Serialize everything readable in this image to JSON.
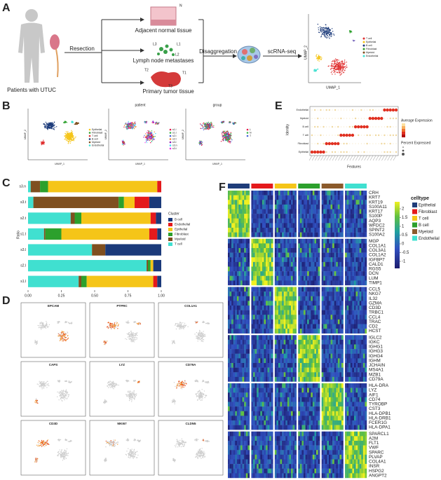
{
  "panel_labels": [
    "A",
    "B",
    "C",
    "D",
    "E",
    "F"
  ],
  "panel_a": {
    "patient_label": "Patients with UTUC",
    "resection": "Resection",
    "tissues": [
      "Adjacent normal tissue",
      "Lymph node metastases",
      "Primary tumor tissue"
    ],
    "normal_code": "N",
    "lymph_codes": [
      "L1",
      "L2",
      "L3"
    ],
    "tumor_codes": [
      "T1",
      "T2",
      "T3"
    ],
    "disaggregation": "Disaggregation",
    "scrna": "scRNA-seq",
    "umap_x": "UMAP_1",
    "umap_y": "UMAP_2",
    "legend": [
      "T cell",
      "Epithelial",
      "B cell",
      "Fibroblast",
      "Myeloid",
      "Endothelial"
    ]
  },
  "panel_b": {
    "titles": [
      "patient",
      "group"
    ],
    "umap_x": "UMAP_1",
    "umap_y": "UMAP_2",
    "celltype_legend": [
      "Epithelial",
      "Fibroblast",
      "T cell",
      "B cell",
      "Myeloid",
      "Endothelial"
    ],
    "patient_legend": [
      "s1.l",
      "s1.t",
      "s2.l",
      "s2.t",
      "s3.l",
      "s3.n",
      "s3.t"
    ],
    "group_legend": [
      "L",
      "N",
      "T"
    ]
  },
  "chart_data": {
    "type": "bar",
    "orientation": "horizontal",
    "stacked": true,
    "y_label": "Ratio",
    "legend_title": "Cluster",
    "categories": [
      "s3.n",
      "s3.t",
      "s2.t",
      "s1.t",
      "s3.l",
      "s2.l",
      "s1.l"
    ],
    "series": [
      {
        "name": "B cell",
        "color": "#1b3a7a",
        "values": [
          0,
          0.09,
          0.04,
          0.03,
          0.42,
          0.06,
          0.03
        ]
      },
      {
        "name": "Endothelial",
        "color": "#e41a1c",
        "values": [
          0.03,
          0.11,
          0.04,
          0.06,
          0,
          0,
          0.03
        ]
      },
      {
        "name": "Epithelial",
        "color": "#f5c518",
        "values": [
          0.82,
          0.08,
          0.52,
          0.66,
          0,
          0.02,
          0.5
        ]
      },
      {
        "name": "Fibroblast",
        "color": "#2ca02c",
        "values": [
          0.06,
          0.04,
          0.05,
          0.12,
          0,
          0.02,
          0.04
        ]
      },
      {
        "name": "Myeloid",
        "color": "#7f4f1f",
        "values": [
          0.07,
          0.64,
          0.03,
          0.01,
          0.1,
          0.01,
          0.02
        ]
      },
      {
        "name": "T cell",
        "color": "#40e0d0",
        "values": [
          0.02,
          0.04,
          0.32,
          0.12,
          0.48,
          0.89,
          0.38
        ]
      }
    ],
    "xlim": [
      0,
      1
    ],
    "xticks": [
      {
        "value": 0,
        "label": "0.00"
      },
      0.25,
      {
        "value": 0.5,
        "label": "0.50"
      },
      0.75,
      {
        "value": 1,
        "label": "1.00"
      }
    ]
  },
  "panel_d": {
    "genes": [
      "EPCAM",
      "PTPRC",
      "COL1A1",
      "CAPS",
      "LYZ",
      "CD79A",
      "CD3D",
      "MKI67",
      "CLDN5"
    ]
  },
  "panel_e": {
    "rows": [
      "Endothelial",
      "Myeloid",
      "B cell",
      "T cell",
      "Fibroblast",
      "Epithelial"
    ],
    "x_label": "Features",
    "y_label": "Identity",
    "legend_expr_title": "Average Expression",
    "legend_pct_title": "Percent Expressed"
  },
  "panel_f": {
    "groups": [
      {
        "name": "Epithelial",
        "color": "#1f3d7a"
      },
      {
        "name": "Fibroblast",
        "color": "#e41a1c"
      },
      {
        "name": "T cell",
        "color": "#f5c518"
      },
      {
        "name": "B cell",
        "color": "#2ca02c"
      },
      {
        "name": "Myeloid",
        "color": "#8b5a2b"
      },
      {
        "name": "Endothelial",
        "color": "#40e0d0"
      }
    ],
    "legend_title": "celltype",
    "genes": [
      [
        "CRH",
        "KRT7",
        "KRT19",
        "S100A11",
        "KRT17",
        "S100P",
        "AQP3",
        "WFDC2",
        "SPINT2",
        "S100A2"
      ],
      [
        "MGP",
        "COL1A1",
        "COL3A1",
        "COL1A2",
        "IGFBP7",
        "CALD1",
        "RGS5",
        "DCN",
        "LUM",
        "TIMP1"
      ],
      [
        "CCL5",
        "NKG7",
        "IL32",
        "GZMA",
        "CD3D",
        "TRBC1",
        "CCL4",
        "TRAC",
        "CD2",
        "HCST"
      ],
      [
        "IGLC2",
        "IGKC",
        "IGHG1",
        "IGHG3",
        "IGHG4",
        "IGHM",
        "JCHAIN",
        "MS4A1",
        "MZB1",
        "CD79A"
      ],
      [
        "HLA-DRA",
        "LYZ",
        "AIF1",
        "CD74",
        "TYROBP",
        "CST3",
        "HLA-DPB1",
        "HLA-DRB1",
        "FCER1G",
        "HLA-DPA1"
      ],
      [
        "SPARCL1",
        "A2M",
        "FLT1",
        "VWF",
        "SPARC",
        "PLVAP",
        "COL4A1",
        "INSR",
        "HSPG2",
        "ANGPT2"
      ]
    ],
    "colorbar_lim": [
      -1.4,
      2.4
    ],
    "colorbar_ticks": [
      2,
      1.5,
      1,
      0.5,
      0,
      -0.5,
      -1
    ]
  }
}
